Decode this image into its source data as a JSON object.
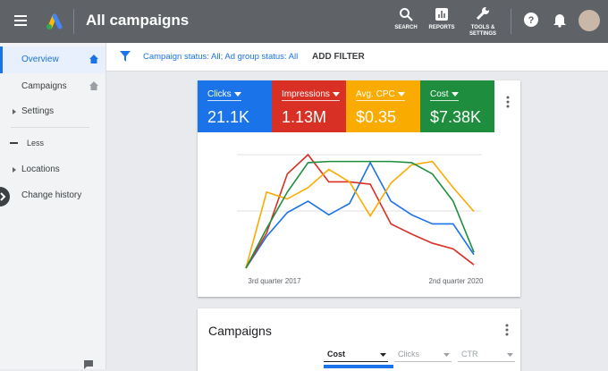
{
  "header": {
    "title": "All campaigns",
    "actions": [
      "SEARCH",
      "REPORTS",
      "TOOLS & SETTINGS"
    ]
  },
  "sidebar": {
    "items": [
      "Overview",
      "Campaigns",
      "Settings",
      "Less",
      "Locations",
      "Change history"
    ]
  },
  "filter": {
    "label": "Campaign status: All; Ad group status: All",
    "add": "ADD FILTER"
  },
  "chart_data": {
    "type": "line",
    "categories": [
      "3rd quarter 2017",
      null,
      null,
      null,
      null,
      null,
      null,
      null,
      null,
      null,
      null,
      "2nd quarter 2020"
    ],
    "ylim": [
      0,
      100
    ],
    "series": [
      {
        "name": "Clicks",
        "total": "21.1K",
        "color": "#1a73e8",
        "values": [
          0,
          28,
          49,
          59,
          47,
          57,
          93,
          59,
          47,
          39,
          39,
          12
        ]
      },
      {
        "name": "Impressions",
        "total": "1.13M",
        "color": "#d93025",
        "values": [
          0,
          31,
          83,
          100,
          76,
          76,
          74,
          39,
          30,
          22,
          17,
          3
        ]
      },
      {
        "name": "Avg. CPC",
        "total": "$0.35",
        "color": "#f9ab00",
        "values": [
          0,
          67,
          61,
          71,
          87,
          76,
          46,
          75,
          91,
          94,
          71,
          50
        ]
      },
      {
        "name": "Cost",
        "total": "$7.38K",
        "color": "#1e8e3e",
        "values": [
          0,
          35,
          67,
          93,
          94,
          94,
          94,
          94,
          93,
          83,
          59,
          14
        ]
      }
    ]
  },
  "campaigns": {
    "title": "Campaigns",
    "columns": [
      "Cost",
      "Clicks",
      "CTR"
    ]
  }
}
